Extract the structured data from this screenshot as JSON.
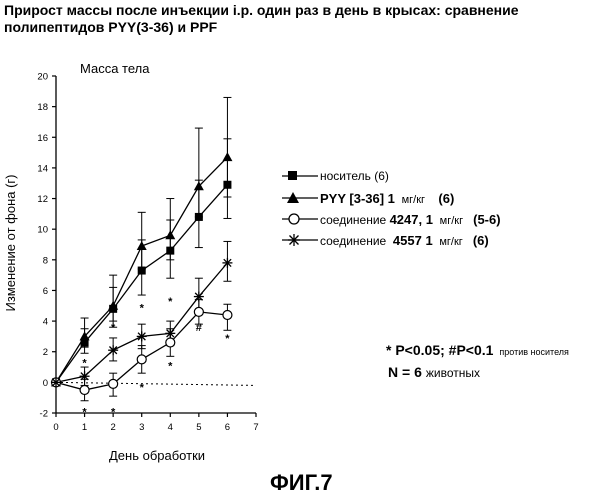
{
  "title_lines": [
    "Прирост массы после инъекции i.p. один раз в день в крысах: сравнение",
    "полипептидов PYY(3-36) и PPF"
  ],
  "figure_label": "ФИГ.7",
  "significance_note": {
    "main": "* P<0.05; #P<0.1",
    "suffix": "против носителя"
  },
  "n_note": {
    "main": "N = 6",
    "suffix": "животных"
  },
  "chart_data": {
    "type": "line",
    "title": "Масса тела",
    "xlabel": "День обработки",
    "ylabel": "Изменение от фона (г)",
    "xlim": [
      0,
      7
    ],
    "ylim": [
      -2,
      20
    ],
    "xticks": [
      "0",
      "1",
      "2",
      "3",
      "4",
      "5",
      "6",
      "7"
    ],
    "yticks": [
      "-2",
      "0",
      "2",
      "4",
      "6",
      "8",
      "10",
      "12",
      "14",
      "16",
      "18",
      "20"
    ],
    "baseline": 0,
    "grid": false,
    "legend_position": "right",
    "x": [
      0,
      1,
      2,
      3,
      4,
      5,
      6
    ],
    "series": [
      {
        "name": "носитель (6)",
        "legend": {
          "pre": "носитель (6)",
          "bold": "",
          "dose": "",
          "count": ""
        },
        "marker": "filled-square",
        "values": [
          0,
          2.6,
          4.8,
          7.3,
          8.6,
          10.8,
          12.9
        ],
        "error_up": [
          0,
          0.9,
          1.4,
          2.0,
          2.0,
          2.4,
          3.0
        ],
        "error_down": [
          0,
          0.7,
          1.2,
          1.6,
          1.8,
          2.0,
          2.2
        ]
      },
      {
        "name": "PYY [3-36] 1 мг/кг (6)",
        "legend": {
          "pre": "",
          "bold": "PYY [3-36] 1",
          "dose": "мг/кг",
          "count": "(6)"
        },
        "marker": "filled-triangle",
        "values": [
          0,
          3.0,
          5.0,
          8.9,
          9.6,
          12.8,
          14.7
        ],
        "error_up": [
          0,
          1.2,
          2.0,
          2.2,
          2.4,
          3.8,
          3.9
        ],
        "error_down": [
          0,
          0.7,
          1.0,
          1.5,
          1.6,
          2.0,
          2.6
        ]
      },
      {
        "name": "соединение 4247, 1 мг/кг (5-6)",
        "legend": {
          "pre": "соединение",
          "bold": "4247, 1",
          "dose": "мг/кг",
          "count": "(5-6)"
        },
        "marker": "open-circle",
        "values": [
          0,
          -0.5,
          -0.1,
          1.5,
          2.6,
          4.6,
          4.4
        ],
        "error_up": [
          0,
          0.7,
          0.7,
          0.9,
          0.9,
          0.8,
          0.7
        ],
        "error_down": [
          0,
          0.7,
          0.8,
          0.9,
          0.9,
          0.8,
          1.0
        ]
      },
      {
        "name": "соединение 4557 1 мг/кг (6)",
        "legend": {
          "pre": "соединение",
          "bold": "4557 1",
          "dose": "мг/кг",
          "count": "(6)"
        },
        "marker": "asterisk",
        "values": [
          0,
          0.4,
          2.1,
          3.0,
          3.2,
          5.6,
          7.8
        ],
        "error_up": [
          0,
          0.6,
          0.8,
          0.8,
          0.8,
          1.2,
          1.4
        ],
        "error_down": [
          0,
          0.6,
          0.7,
          0.8,
          0.8,
          1.0,
          1.2
        ]
      }
    ],
    "reference_line": {
      "style": "dotted",
      "x": [
        0,
        7
      ],
      "y": [
        0,
        -0.2
      ]
    },
    "significance_marks": [
      {
        "x": 1,
        "y": 1.3,
        "text": "*"
      },
      {
        "x": 1,
        "y": -1.9,
        "text": "*"
      },
      {
        "x": 2,
        "y": 3.6,
        "text": "*"
      },
      {
        "x": 2,
        "y": -1.9,
        "text": "*"
      },
      {
        "x": 3,
        "y": 4.9,
        "text": "*"
      },
      {
        "x": 3,
        "y": -0.3,
        "text": "*"
      },
      {
        "x": 4,
        "y": 5.3,
        "text": "*"
      },
      {
        "x": 4,
        "y": 1.1,
        "text": "*"
      },
      {
        "x": 5,
        "y": 3.6,
        "text": "#"
      },
      {
        "x": 6,
        "y": 2.9,
        "text": "*"
      }
    ]
  }
}
